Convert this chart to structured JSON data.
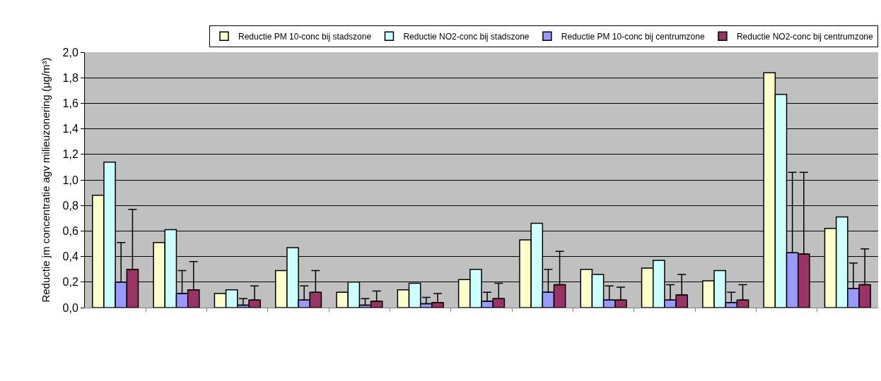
{
  "chart_data": {
    "type": "bar",
    "ylabel": "Reductie jm concentratie agv milieuzonering (µg/m³)",
    "categories": [
      null,
      null,
      null,
      null,
      null,
      null,
      null,
      null,
      null,
      null,
      null,
      null,
      null
    ],
    "series": [
      {
        "name": "Reductie PM 10-conc bij stadszone",
        "color": "#ffffcc",
        "values": [
          0.88,
          0.51,
          0.11,
          0.29,
          0.12,
          0.14,
          0.22,
          0.53,
          0.3,
          0.31,
          0.21,
          1.84,
          0.62
        ]
      },
      {
        "name": "Reductie NO2-conc bij stadszone",
        "color": "#ccffff",
        "values": [
          1.14,
          0.61,
          0.14,
          0.47,
          0.2,
          0.19,
          0.3,
          0.66,
          0.26,
          0.37,
          0.29,
          1.67,
          0.71
        ]
      },
      {
        "name": "Reductie PM 10-conc bij centrumzone",
        "color": "#9999ff",
        "values": [
          0.2,
          0.11,
          0.02,
          0.06,
          0.02,
          0.03,
          0.05,
          0.12,
          0.06,
          0.06,
          0.04,
          0.43,
          0.15
        ],
        "errors": [
          [
            0.2,
            0.51
          ],
          [
            0.11,
            0.29
          ],
          [
            0.02,
            0.07
          ],
          [
            0.06,
            0.17
          ],
          [
            0.02,
            0.07
          ],
          [
            0.03,
            0.08
          ],
          [
            0.05,
            0.12
          ],
          [
            0.12,
            0.3
          ],
          [
            0.06,
            0.17
          ],
          [
            0.06,
            0.18
          ],
          [
            0.04,
            0.12
          ],
          [
            0.43,
            1.06
          ],
          [
            0.15,
            0.35
          ]
        ]
      },
      {
        "name": "Reductie NO2-conc bij centrumzone",
        "color": "#993366",
        "values": [
          0.3,
          0.14,
          0.06,
          0.12,
          0.05,
          0.04,
          0.07,
          0.18,
          0.06,
          0.1,
          0.06,
          0.42,
          0.18
        ],
        "errors": [
          [
            0.3,
            0.77
          ],
          [
            0.14,
            0.36
          ],
          [
            0.06,
            0.17
          ],
          [
            0.12,
            0.29
          ],
          [
            0.05,
            0.13
          ],
          [
            0.04,
            0.11
          ],
          [
            0.07,
            0.19
          ],
          [
            0.18,
            0.44
          ],
          [
            0.06,
            0.16
          ],
          [
            0.1,
            0.26
          ],
          [
            0.06,
            0.18
          ],
          [
            0.42,
            1.06
          ],
          [
            0.18,
            0.46
          ]
        ]
      }
    ],
    "ylim": [
      0,
      2
    ],
    "yticks": [
      {
        "value": 0,
        "label": "0,0"
      },
      {
        "value": 0.2,
        "label": "0,2"
      },
      {
        "value": 0.4,
        "label": "0,4"
      },
      {
        "value": 0.6,
        "label": "0,6"
      },
      {
        "value": 0.8,
        "label": "0,8"
      },
      {
        "value": 1.0,
        "label": "1,0"
      },
      {
        "value": 1.2,
        "label": "1,2"
      },
      {
        "value": 1.4,
        "label": "1,4"
      },
      {
        "value": 1.6,
        "label": "1,6"
      },
      {
        "value": 1.8,
        "label": "1,8"
      },
      {
        "value": 2.0,
        "label": "2,0"
      }
    ],
    "grid": "y",
    "legend": "top",
    "tick_labels": "y"
  }
}
